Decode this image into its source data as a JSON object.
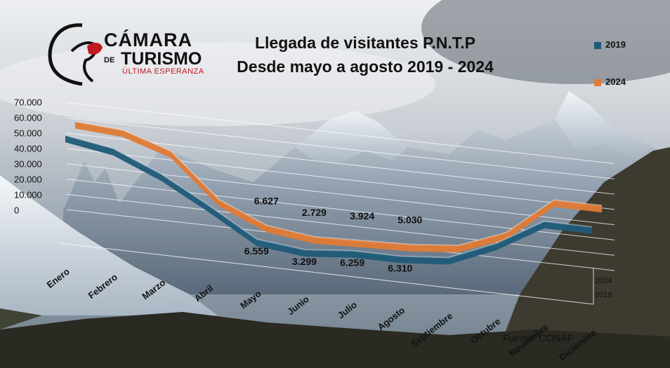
{
  "logo": {
    "line1": "CÁMARA",
    "line2a": "DE",
    "line2b": "TURISMO",
    "line3": "ÚLTIMA ESPERANZA"
  },
  "title_line1": "Llegada de visitantes P.N.T.P",
  "title_line2": "Desde mayo a agosto 2019 - 2024",
  "source": "Fuente: CONAF",
  "colors": {
    "series2019": "#1f5b78",
    "series2024": "#e07a35"
  },
  "chart_data": {
    "type": "line",
    "style": "3d-ribbon",
    "categories": [
      "Enero",
      "Febrero",
      "Marzo",
      "Abril",
      "Mayo",
      "Junio",
      "Julio",
      "Agosto",
      "Septiembre",
      "Octubre",
      "Noviembre",
      "Diciembre"
    ],
    "yticks": [
      "70.000",
      "60.000",
      "50.000",
      "40.000",
      "30.000",
      "20.000",
      "10.000",
      "0"
    ],
    "ylim": [
      0,
      70000
    ],
    "depth_labels": [
      "2024",
      "2019"
    ],
    "legend_position": "top-right",
    "series": [
      {
        "name": "2019",
        "values": [
          60000,
          55000,
          42000,
          25000,
          6559,
          3299,
          6259,
          6310,
          9000,
          22000,
          40000,
          40000
        ]
      },
      {
        "name": "2024",
        "values": [
          60000,
          58000,
          48000,
          20000,
          6627,
          2729,
          3924,
          5030,
          8000,
          20000,
          45000,
          45000
        ]
      }
    ],
    "data_labels": [
      {
        "series": "2019",
        "month": "Mayo",
        "text": "6.559"
      },
      {
        "series": "2019",
        "month": "Junio",
        "text": "3.299"
      },
      {
        "series": "2019",
        "month": "Julio",
        "text": "6.259"
      },
      {
        "series": "2019",
        "month": "Agosto",
        "text": "6.310"
      },
      {
        "series": "2024",
        "month": "Mayo",
        "text": "6.627"
      },
      {
        "series": "2024",
        "month": "Junio",
        "text": "2.729"
      },
      {
        "series": "2024",
        "month": "Julio",
        "text": "3.924"
      },
      {
        "series": "2024",
        "month": "Agosto",
        "text": "5.030"
      }
    ]
  }
}
